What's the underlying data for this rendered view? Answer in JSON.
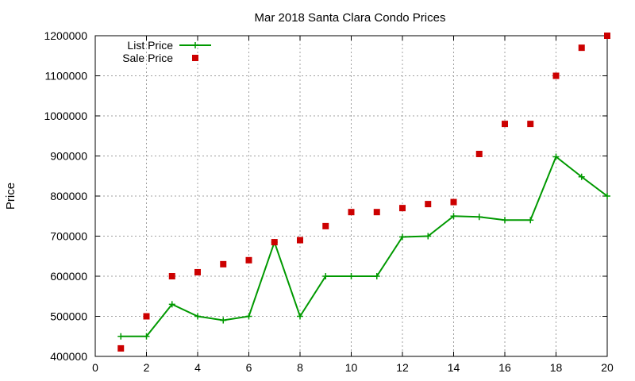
{
  "chart_data": {
    "type": "line",
    "title": "Mar 2018 Santa Clara Condo Prices",
    "xlabel": "",
    "ylabel": "Price",
    "xlim": [
      0,
      20
    ],
    "ylim": [
      400000,
      1200000
    ],
    "x_ticks": [
      0,
      2,
      4,
      6,
      8,
      10,
      12,
      14,
      16,
      18,
      20
    ],
    "y_ticks": [
      400000,
      500000,
      600000,
      700000,
      800000,
      900000,
      1000000,
      1100000,
      1200000
    ],
    "grid": true,
    "legend_position": "top-left",
    "x": [
      1,
      2,
      3,
      4,
      5,
      6,
      7,
      8,
      9,
      10,
      11,
      12,
      13,
      14,
      15,
      16,
      17,
      18,
      19,
      20
    ],
    "series": [
      {
        "name": "List Price",
        "style": "line-plus",
        "color": "#009900",
        "values": [
          450000,
          450000,
          530000,
          500000,
          490000,
          500000,
          685000,
          500000,
          600000,
          600000,
          600000,
          698000,
          700000,
          750000,
          748000,
          740000,
          740000,
          898000,
          848000,
          800000
        ]
      },
      {
        "name": "Sale Price",
        "style": "square-points",
        "color": "#cc0000",
        "values": [
          420000,
          500000,
          600000,
          610000,
          630000,
          640000,
          685000,
          690000,
          725000,
          760000,
          760000,
          770000,
          780000,
          785000,
          905000,
          980000,
          980000,
          1100000,
          1170000,
          1200000
        ]
      }
    ]
  }
}
